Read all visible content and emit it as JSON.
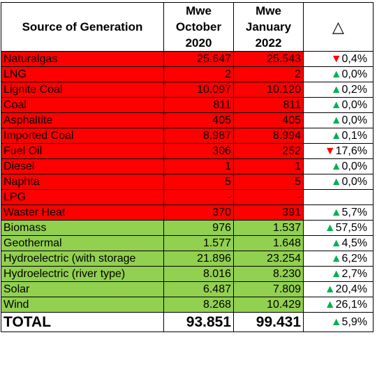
{
  "header": {
    "source_label": "Source of Generation",
    "col1": [
      "Mwe",
      "October",
      "2020"
    ],
    "col2": [
      "Mwe",
      "January",
      "2022"
    ],
    "delta_label": "△"
  },
  "rows": [
    {
      "name": "Naturalgas",
      "oct2020": "25.647",
      "jan2022": "25.543",
      "arrow": "▼",
      "change": "0,4%",
      "dir": "down",
      "group": "red"
    },
    {
      "name": "LNG",
      "oct2020": "2",
      "jan2022": "2",
      "arrow": "▲",
      "change": "0,0%",
      "dir": "up",
      "group": "red"
    },
    {
      "name": "Lignite Coal",
      "oct2020": "10.097",
      "jan2022": "10.120",
      "arrow": "▲",
      "change": "0,2%",
      "dir": "up",
      "group": "red"
    },
    {
      "name": "Coal",
      "oct2020": "811",
      "jan2022": "811",
      "arrow": "▲",
      "change": "0,0%",
      "dir": "up",
      "group": "red"
    },
    {
      "name": "Asphaltite",
      "oct2020": "405",
      "jan2022": "405",
      "arrow": "▲",
      "change": "0,0%",
      "dir": "up",
      "group": "red"
    },
    {
      "name": "Imported Coal",
      "oct2020": "8.987",
      "jan2022": "8.994",
      "arrow": "▲",
      "change": "0,1%",
      "dir": "up",
      "group": "red"
    },
    {
      "name": "Fuel Oil",
      "oct2020": "306",
      "jan2022": "252",
      "arrow": "▼",
      "change": "17,6%",
      "dir": "down",
      "group": "red"
    },
    {
      "name": "Diesel",
      "oct2020": "1",
      "jan2022": "1",
      "arrow": "▲",
      "change": "0,0%",
      "dir": "up",
      "group": "red"
    },
    {
      "name": "Naphta",
      "oct2020": "5",
      "jan2022": "5",
      "arrow": "▲",
      "change": "0,0%",
      "dir": "up",
      "group": "red"
    },
    {
      "name": "LPG",
      "oct2020": "-",
      "jan2022": "-",
      "arrow": "",
      "change": "",
      "dir": "",
      "group": "red"
    },
    {
      "name": "Waster Heat",
      "oct2020": "370",
      "jan2022": "391",
      "arrow": "▲",
      "change": "5,7%",
      "dir": "up",
      "group": "red"
    },
    {
      "name": "Biomass",
      "oct2020": "976",
      "jan2022": "1.537",
      "arrow": "▲",
      "change": "57,5%",
      "dir": "up",
      "group": "green"
    },
    {
      "name": "Geothermal",
      "oct2020": "1.577",
      "jan2022": "1.648",
      "arrow": "▲",
      "change": "4,5%",
      "dir": "up",
      "group": "green"
    },
    {
      "name": "Hydroelectric (with storage",
      "oct2020": "21.896",
      "jan2022": "23.254",
      "arrow": "▲",
      "change": "6,2%",
      "dir": "up",
      "group": "green"
    },
    {
      "name": "Hydroelectric (river type)",
      "oct2020": "8.016",
      "jan2022": "8.230",
      "arrow": "▲",
      "change": "2,7%",
      "dir": "up",
      "group": "green"
    },
    {
      "name": "Solar",
      "oct2020": "6.487",
      "jan2022": "7.809",
      "arrow": "▲",
      "change": "20,4%",
      "dir": "up",
      "group": "green"
    },
    {
      "name": "Wind",
      "oct2020": "8.268",
      "jan2022": "10.429",
      "arrow": "▲",
      "change": "26,1%",
      "dir": "up",
      "group": "green"
    }
  ],
  "total": {
    "label": "TOTAL",
    "oct2020": "93.851",
    "jan2022": "99.431",
    "arrow": "▲",
    "change": "5,9%",
    "dir": "up"
  },
  "colors": {
    "red_fill": "#ff0000",
    "green_fill": "#92d050",
    "up_arrow": "#00b050",
    "down_arrow": "#ff0000"
  }
}
